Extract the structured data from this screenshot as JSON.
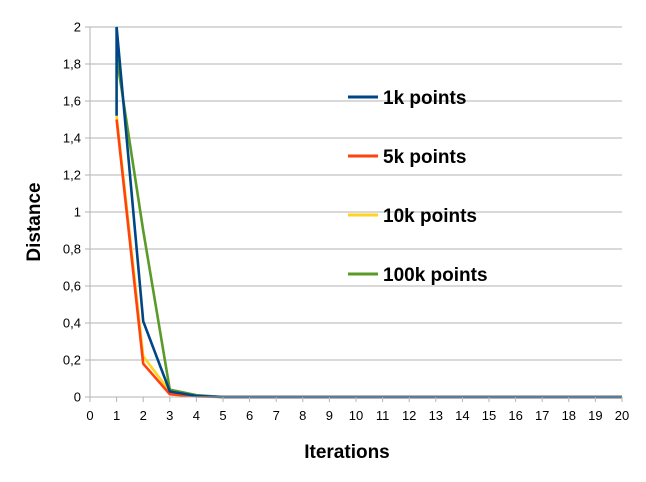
{
  "chart_data": {
    "type": "line",
    "title": "",
    "xlabel": "Iterations",
    "ylabel": "Distance",
    "xlim": [
      0,
      20
    ],
    "ylim": [
      0,
      2
    ],
    "x_ticks": [
      0,
      1,
      2,
      3,
      4,
      5,
      6,
      7,
      8,
      9,
      10,
      11,
      12,
      13,
      14,
      15,
      16,
      17,
      18,
      19,
      20
    ],
    "x_tick_labels": [
      "0",
      "1",
      "2",
      "3",
      "4",
      "5",
      "6",
      "7",
      "8",
      "9",
      "10",
      "11",
      "12",
      "13",
      "14",
      "15",
      "16",
      "17",
      "18",
      "19",
      "20"
    ],
    "y_ticks": [
      0,
      0.2,
      0.4,
      0.6,
      0.8,
      1,
      1.2,
      1.4,
      1.6,
      1.8,
      2
    ],
    "y_tick_labels": [
      "0",
      "0,2",
      "0,4",
      "0,6",
      "0,8",
      "1",
      "1,2",
      "1,4",
      "1,6",
      "1,8",
      "2"
    ],
    "grid": {
      "horizontal": true,
      "vertical": false
    },
    "legend_position": "right",
    "x": [
      1,
      2,
      3,
      4,
      5,
      6,
      7,
      8,
      9,
      10,
      11,
      12,
      13,
      14,
      15,
      16,
      17,
      18,
      19,
      20
    ],
    "series": [
      {
        "name": "100k points",
        "color": "#5a9a28",
        "values": [
          1.84,
          0.9,
          0.04,
          0.01,
          0,
          0,
          0,
          0,
          0,
          0,
          0,
          0,
          0,
          0,
          0,
          0,
          0,
          0,
          0,
          0
        ]
      },
      {
        "name": "10k points",
        "color": "#ffd320",
        "values": [
          1.52,
          0.22,
          0.03,
          0.005,
          0,
          0,
          0,
          0,
          0,
          0,
          0,
          0,
          0,
          0,
          0,
          0,
          0,
          0,
          0,
          0
        ]
      },
      {
        "name": "5k points",
        "color": "#ff420e",
        "values": [
          1.5,
          0.18,
          0.015,
          0.003,
          0,
          0,
          0,
          0,
          0,
          0,
          0,
          0,
          0,
          0,
          0,
          0,
          0,
          0,
          0,
          0
        ]
      },
      {
        "name": "1k points",
        "color": "#004586",
        "values": [
          2.0,
          0.41,
          0.03,
          0.006,
          0,
          0,
          0,
          0,
          0,
          0,
          0,
          0,
          0,
          0,
          0,
          0,
          0,
          0,
          0,
          0
        ],
        "extra_points": [
          {
            "x": 1,
            "y": 1.52
          }
        ]
      }
    ],
    "legend_order": [
      "1k points",
      "5k points",
      "10k points",
      "100k points"
    ]
  }
}
